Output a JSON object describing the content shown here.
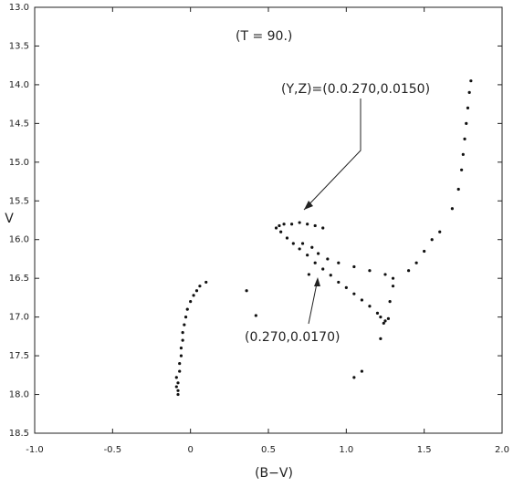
{
  "chart_data": {
    "type": "scatter",
    "xlabel": "(B−V)",
    "ylabel": "V",
    "annotations": [
      "(T = 90.)",
      "(Y,Z)=(0.0.270,0.0150)",
      "(0.270,0.0170)"
    ],
    "xlim": [
      -1.0,
      2.0
    ],
    "xticks": [
      {
        "value": -1.0,
        "label": "-1.0"
      },
      {
        "value": -0.5,
        "label": "-0.5"
      },
      0,
      0.5,
      {
        "value": 1.0,
        "label": "1.0"
      },
      1.5,
      {
        "value": 2.0,
        "label": "2.0"
      }
    ],
    "ylim": [
      13.0,
      18.5
    ],
    "y_inverted": true,
    "yticks": [
      {
        "value": 13.0,
        "label": "13.0"
      },
      13.5,
      {
        "value": 14.0,
        "label": "14.0"
      },
      14.5,
      {
        "value": 15.0,
        "label": "15.0"
      },
      15.5,
      {
        "value": 16.0,
        "label": "16.0"
      },
      16.5,
      {
        "value": 17.0,
        "label": "17.0"
      },
      17.5,
      {
        "value": 18.0,
        "label": "18.0"
      },
      18.5
    ],
    "color": "#111",
    "x": [
      -0.08,
      -0.08,
      -0.09,
      -0.08,
      -0.09,
      -0.07,
      -0.07,
      -0.06,
      -0.06,
      -0.05,
      -0.05,
      -0.04,
      -0.03,
      -0.02,
      0.0,
      0.02,
      0.04,
      0.06,
      0.1,
      0.36,
      0.55,
      0.57,
      0.6,
      0.65,
      0.7,
      0.75,
      0.8,
      0.85,
      0.58,
      0.62,
      0.66,
      0.7,
      0.75,
      0.8,
      0.85,
      0.9,
      0.95,
      1.0,
      1.05,
      1.1,
      1.15,
      1.2,
      1.22,
      1.25,
      1.27,
      1.24,
      0.72,
      0.78,
      0.82,
      0.88,
      0.95,
      1.05,
      1.15,
      1.25,
      1.3,
      1.3,
      1.28,
      1.22,
      1.4,
      1.45,
      1.5,
      1.55,
      1.6,
      1.68,
      1.72,
      1.74,
      1.75,
      1.76,
      1.77,
      1.78,
      1.79,
      1.8,
      0.42,
      0.76,
      1.1,
      1.05
    ],
    "values": [
      18.0,
      17.95,
      17.9,
      17.85,
      17.78,
      17.7,
      17.6,
      17.5,
      17.4,
      17.3,
      17.2,
      17.1,
      17.0,
      16.9,
      16.8,
      16.72,
      16.66,
      16.6,
      16.55,
      16.66,
      15.85,
      15.82,
      15.8,
      15.8,
      15.78,
      15.8,
      15.82,
      15.85,
      15.9,
      15.98,
      16.05,
      16.12,
      16.2,
      16.3,
      16.38,
      16.46,
      16.55,
      16.62,
      16.7,
      16.78,
      16.86,
      16.95,
      17.0,
      17.05,
      17.02,
      17.08,
      16.05,
      16.1,
      16.18,
      16.25,
      16.3,
      16.35,
      16.4,
      16.45,
      16.5,
      16.6,
      16.8,
      17.28,
      16.4,
      16.3,
      16.15,
      16.0,
      15.9,
      15.6,
      15.35,
      15.1,
      14.9,
      14.7,
      14.5,
      14.3,
      14.1,
      13.95,
      16.98,
      16.45,
      17.7,
      17.78
    ]
  }
}
